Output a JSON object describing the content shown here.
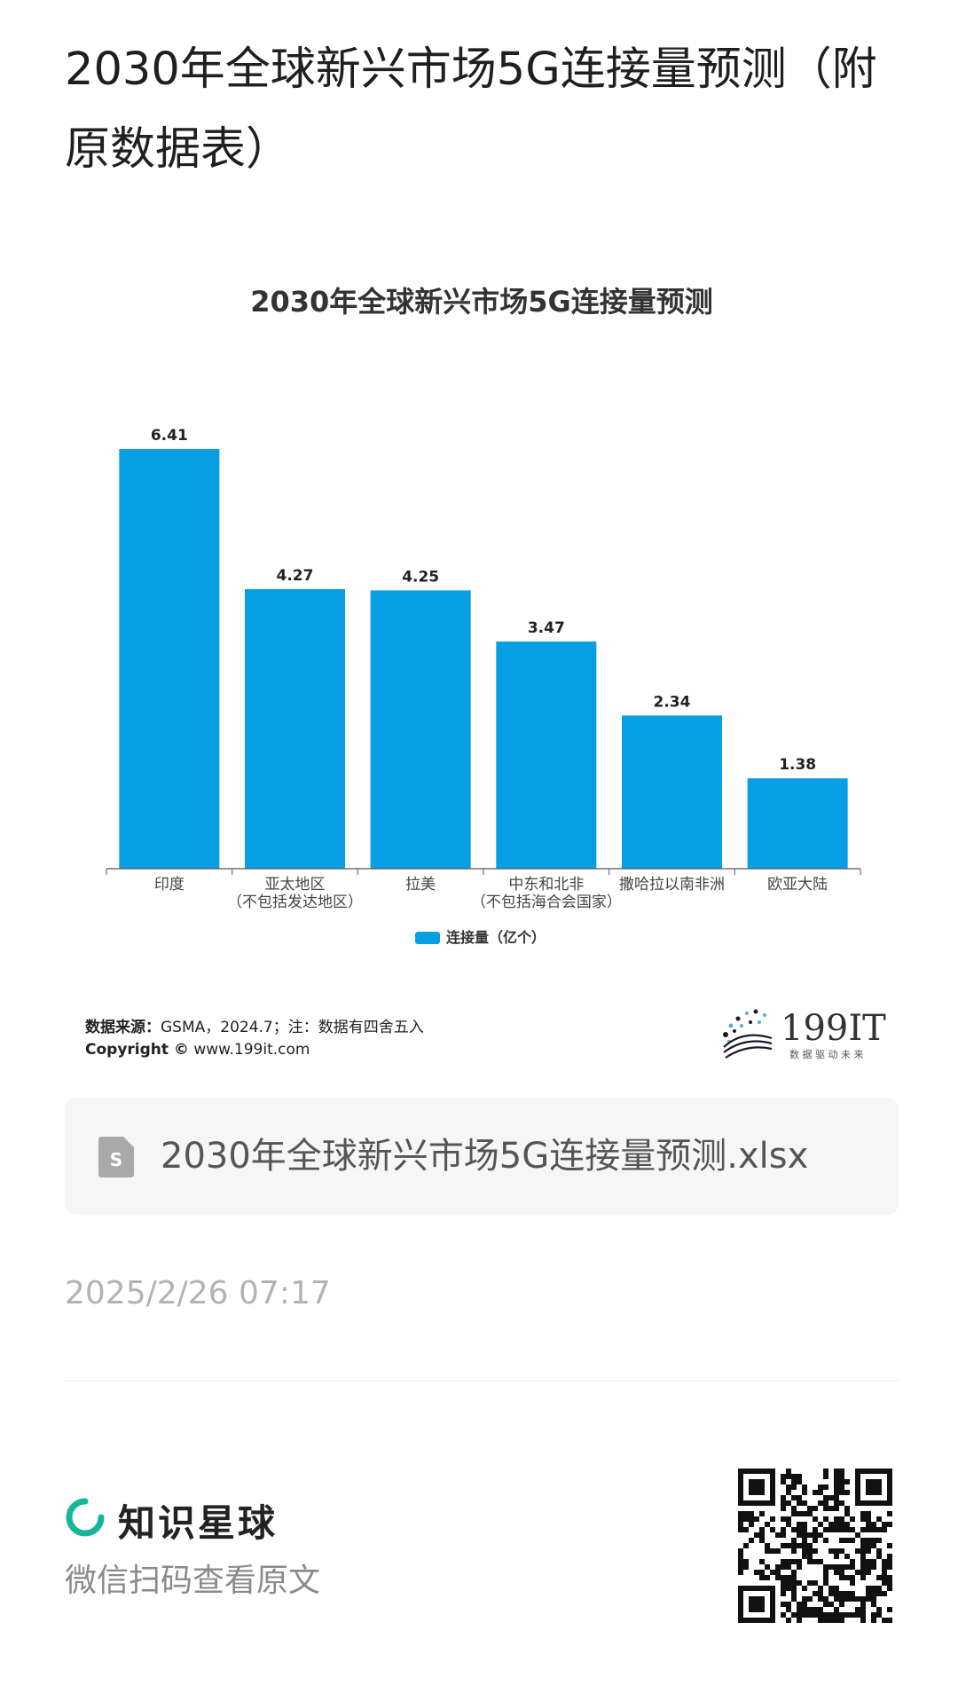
{
  "page_title": "2030年全球新兴市场5G连接量预测（附原数据表）",
  "chart_data": {
    "type": "bar",
    "title": "2030年全球新兴市场5G连接量预测",
    "categories": [
      [
        "印度"
      ],
      [
        "亚太地区",
        "（不包括发达地区）"
      ],
      [
        "拉美"
      ],
      [
        "中东和北非",
        "（不包括海合会国家）"
      ],
      [
        "撒哈拉以南非洲"
      ],
      [
        "欧亚大陆"
      ]
    ],
    "series": [
      {
        "name": "连接量（亿个）",
        "values": [
          6.41,
          4.27,
          4.25,
          3.47,
          2.34,
          1.38
        ],
        "color": "#069fe3"
      }
    ],
    "value_labels": [
      "6.41",
      "4.27",
      "4.25",
      "3.47",
      "2.34",
      "1.38"
    ],
    "ylim": [
      0,
      6.41
    ],
    "grid": false,
    "legend_position": "bottom"
  },
  "source": {
    "label": "数据来源：",
    "text": "GSMA，2024.7；注：数据有四舍五入",
    "copyright_label": "Copyright ©",
    "copyright_url": "www.199it.com"
  },
  "logo": {
    "text": "199IT",
    "tagline": "数 据 驱 动 未 来"
  },
  "file": {
    "name": "2030年全球新兴市场5G连接量预测.xlsx",
    "icon_letter": "S"
  },
  "timestamp": "2025/2/26 07:17",
  "footer": {
    "brand_name": "知识星球",
    "scan_hint": "微信扫码查看原文"
  },
  "colors": {
    "bar": "#069fe3",
    "brand_green": "#17b59a"
  }
}
